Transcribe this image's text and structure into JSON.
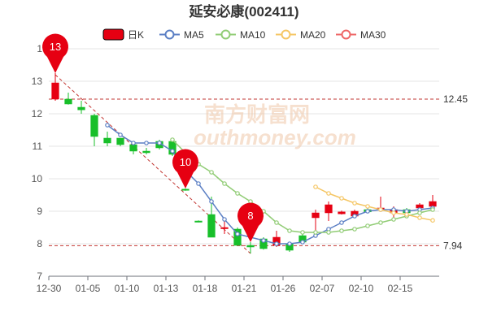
{
  "chart_data": {
    "type": "candlestick",
    "title": "延安必康(002411)",
    "legend": [
      {
        "label": "日K",
        "type": "kline",
        "color": "#e60012",
        "border": "#000000"
      },
      {
        "label": "MA5",
        "type": "line",
        "color": "#5b7fc4"
      },
      {
        "label": "MA10",
        "type": "line",
        "color": "#91cc75"
      },
      {
        "label": "MA20",
        "type": "line",
        "color": "#f5c664"
      },
      {
        "label": "MA30",
        "type": "line",
        "color": "#ee6666"
      }
    ],
    "colors": {
      "up": "#e60012",
      "down": "#18bf2a",
      "ref_line": "#c23531",
      "pin": "#e60012"
    },
    "ylim": [
      7,
      14
    ],
    "y_ticks": [
      "7",
      "8",
      "9",
      "10",
      "11",
      "12",
      "13",
      "1"
    ],
    "x_tick_labels": [
      "12-30",
      "01-05",
      "01-10",
      "01-13",
      "01-18",
      "01-21",
      "01-26",
      "02-07",
      "02-10",
      "02-15"
    ],
    "x_tick_index": [
      0,
      3,
      6,
      9,
      12,
      15,
      18,
      21,
      24,
      27
    ],
    "candles": [
      {
        "open": 12.45,
        "close": 12.95,
        "low": 12.4,
        "high": 13.25
      },
      {
        "open": 12.45,
        "close": 12.3,
        "low": 12.28,
        "high": 12.65
      },
      {
        "open": 12.2,
        "close": 12.12,
        "low": 12.0,
        "high": 12.4
      },
      {
        "open": 11.95,
        "close": 11.3,
        "low": 11.0,
        "high": 12.0
      },
      {
        "open": 11.25,
        "close": 11.1,
        "low": 11.0,
        "high": 11.45
      },
      {
        "open": 11.25,
        "close": 11.05,
        "low": 11.0,
        "high": 11.25
      },
      {
        "open": 11.05,
        "close": 10.85,
        "low": 10.75,
        "high": 11.05
      },
      {
        "open": 10.85,
        "close": 10.8,
        "low": 10.75,
        "high": 10.95
      },
      {
        "open": 11.15,
        "close": 10.95,
        "low": 10.9,
        "high": 11.2
      },
      {
        "open": 11.15,
        "close": 10.75,
        "low": 10.7,
        "high": 11.2
      },
      {
        "open": 9.68,
        "close": 9.65,
        "low": 9.63,
        "high": 9.7
      },
      {
        "open": 8.7,
        "close": 8.68,
        "low": 8.66,
        "high": 8.72
      },
      {
        "open": 8.9,
        "close": 8.2,
        "low": 8.2,
        "high": 9.45
      },
      {
        "open": 8.5,
        "close": 8.5,
        "low": 8.3,
        "high": 8.8
      },
      {
        "open": 8.45,
        "close": 7.95,
        "low": 7.95,
        "high": 8.5
      },
      {
        "open": 7.95,
        "close": 7.9,
        "low": 7.7,
        "high": 8.05
      },
      {
        "open": 8.15,
        "close": 7.85,
        "low": 7.82,
        "high": 8.2
      },
      {
        "open": 7.95,
        "close": 8.2,
        "low": 7.9,
        "high": 8.4
      },
      {
        "open": 8.0,
        "close": 7.8,
        "low": 7.75,
        "high": 8.05
      },
      {
        "open": 8.25,
        "close": 8.05,
        "low": 8.0,
        "high": 8.3
      },
      {
        "open": 8.8,
        "close": 8.95,
        "low": 8.3,
        "high": 9.05
      },
      {
        "open": 8.95,
        "close": 9.2,
        "low": 8.7,
        "high": 9.3
      },
      {
        "open": 8.92,
        "close": 8.98,
        "low": 8.9,
        "high": 9.02
      },
      {
        "open": 8.85,
        "close": 9.0,
        "low": 8.8,
        "high": 9.05
      },
      {
        "open": 9.05,
        "close": 8.98,
        "low": 8.95,
        "high": 9.1
      },
      {
        "open": 9.05,
        "close": 9.1,
        "low": 9.0,
        "high": 9.45
      },
      {
        "open": 8.95,
        "close": 9.05,
        "low": 8.8,
        "high": 9.15
      },
      {
        "open": 9.05,
        "close": 8.95,
        "low": 8.9,
        "high": 9.1
      },
      {
        "open": 9.1,
        "close": 9.2,
        "low": 8.95,
        "high": 9.25
      },
      {
        "open": 9.15,
        "close": 9.3,
        "low": 9.05,
        "high": 9.5
      }
    ],
    "ma5": [
      null,
      null,
      null,
      null,
      11.65,
      11.35,
      11.1,
      11.1,
      11.1,
      10.85,
      10.25,
      9.85,
      9.3,
      8.75,
      8.3,
      8.2,
      8.1,
      8.0,
      8.0,
      8.05,
      8.25,
      8.45,
      8.65,
      8.85,
      9.0,
      9.05,
      9.05,
      9.0,
      9.05,
      9.1
    ],
    "ma10": [
      null,
      null,
      null,
      null,
      null,
      null,
      null,
      null,
      null,
      11.2,
      10.8,
      10.45,
      10.2,
      9.85,
      9.55,
      9.3,
      9.0,
      8.65,
      8.4,
      8.35,
      8.35,
      8.35,
      8.4,
      8.45,
      8.55,
      8.65,
      8.75,
      8.85,
      8.95,
      9.05
    ],
    "ma20": [
      null,
      null,
      null,
      null,
      null,
      null,
      null,
      null,
      null,
      null,
      null,
      null,
      null,
      null,
      null,
      null,
      null,
      null,
      null,
      null,
      9.75,
      9.55,
      9.4,
      9.25,
      9.15,
      9.05,
      8.95,
      8.9,
      8.8,
      8.72
    ],
    "ma30": [],
    "ref_lines": [
      {
        "value": 12.45,
        "label": "12.45"
      },
      {
        "value": 7.94,
        "label": "7.94"
      }
    ],
    "trend_line": [
      {
        "index": 0,
        "value": 13.2
      },
      {
        "index": 15,
        "value": 7.7
      }
    ],
    "markers": [
      {
        "index": 0,
        "value": 13.25,
        "label": "13"
      },
      {
        "index": 10,
        "value": 9.7,
        "label": "10"
      },
      {
        "index": 15,
        "value": 8.05,
        "label": "8"
      }
    ],
    "grid": true
  },
  "watermark": {
    "cn": "南方财富网",
    "en": "outhmoney.com"
  }
}
